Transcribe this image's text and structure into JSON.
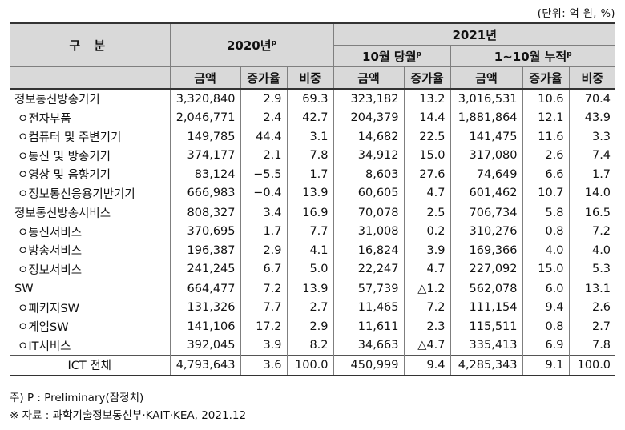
{
  "unit_note": "(단위: 억 원, %)",
  "header": {
    "category": "구   분",
    "year2020": "2020년",
    "year2020_sup": "p",
    "year2021": "2021년",
    "month": "10월 당월",
    "month_sup": "p",
    "cumulative": "1~10월 누적",
    "cumulative_sup": "p",
    "amount": "금액",
    "growth": "증가율",
    "share": "비중"
  },
  "rows": [
    {
      "label": "정보통신방송기기",
      "sub": false,
      "group": false,
      "v": [
        "3,320,840",
        "2.9",
        "69.3",
        "323,182",
        "13.2",
        "3,016,531",
        "10.6",
        "70.4"
      ]
    },
    {
      "label": "ㅇ전자부품",
      "sub": true,
      "group": false,
      "v": [
        "2,046,771",
        "2.4",
        "42.7",
        "204,379",
        "14.4",
        "1,881,864",
        "12.1",
        "43.9"
      ]
    },
    {
      "label": "ㅇ컴퓨터 및 주변기기",
      "sub": true,
      "group": false,
      "v": [
        "149,785",
        "44.4",
        "3.1",
        "14,682",
        "22.5",
        "141,475",
        "11.6",
        "3.3"
      ]
    },
    {
      "label": "ㅇ통신 및 방송기기",
      "sub": true,
      "group": false,
      "v": [
        "374,177",
        "2.1",
        "7.8",
        "34,912",
        "15.0",
        "317,080",
        "2.6",
        "7.4"
      ]
    },
    {
      "label": "ㅇ영상 및 음향기기",
      "sub": true,
      "group": false,
      "v": [
        "83,124",
        "−5.5",
        "1.7",
        "8,603",
        "27.6",
        "74,649",
        "6.6",
        "1.7"
      ]
    },
    {
      "label": "ㅇ정보통신응용기반기기",
      "sub": true,
      "group": false,
      "v": [
        "666,983",
        "−0.4",
        "13.9",
        "60,605",
        "4.7",
        "601,462",
        "10.7",
        "14.0"
      ]
    },
    {
      "label": "정보통신방송서비스",
      "sub": false,
      "group": true,
      "v": [
        "808,327",
        "3.4",
        "16.9",
        "70,078",
        "2.5",
        "706,734",
        "5.8",
        "16.5"
      ]
    },
    {
      "label": "ㅇ통신서비스",
      "sub": true,
      "group": false,
      "v": [
        "370,695",
        "1.7",
        "7.7",
        "31,008",
        "0.2",
        "310,276",
        "0.8",
        "7.2"
      ]
    },
    {
      "label": "ㅇ방송서비스",
      "sub": true,
      "group": false,
      "v": [
        "196,387",
        "2.9",
        "4.1",
        "16,824",
        "3.9",
        "169,366",
        "4.0",
        "4.0"
      ]
    },
    {
      "label": "ㅇ정보서비스",
      "sub": true,
      "group": false,
      "v": [
        "241,245",
        "6.7",
        "5.0",
        "22,247",
        "4.7",
        "227,092",
        "15.0",
        "5.3"
      ]
    },
    {
      "label": "SW",
      "sub": false,
      "group": true,
      "v": [
        "664,477",
        "7.2",
        "13.9",
        "57,739",
        "△1.2",
        "562,078",
        "6.0",
        "13.1"
      ]
    },
    {
      "label": "ㅇ패키지SW",
      "sub": true,
      "group": false,
      "v": [
        "131,326",
        "7.7",
        "2.7",
        "11,465",
        "7.2",
        "111,154",
        "9.4",
        "2.6"
      ]
    },
    {
      "label": "ㅇ게임SW",
      "sub": true,
      "group": false,
      "v": [
        "141,106",
        "17.2",
        "2.9",
        "11,611",
        "2.3",
        "115,511",
        "0.8",
        "2.7"
      ]
    },
    {
      "label": "ㅇIT서비스",
      "sub": true,
      "group": false,
      "v": [
        "392,045",
        "3.9",
        "8.2",
        "34,663",
        "△4.7",
        "335,413",
        "6.9",
        "7.8"
      ]
    }
  ],
  "total": {
    "label": "ICT 전체",
    "v": [
      "4,793,643",
      "3.6",
      "100.0",
      "450,999",
      "9.4",
      "4,285,343",
      "9.1",
      "100.0"
    ]
  },
  "notes": {
    "note1": "주) P : Preliminary(잠정치)",
    "note2": "※ 자료 : 과학기술정보통신부·KAIT·KEA, 2021.12"
  }
}
